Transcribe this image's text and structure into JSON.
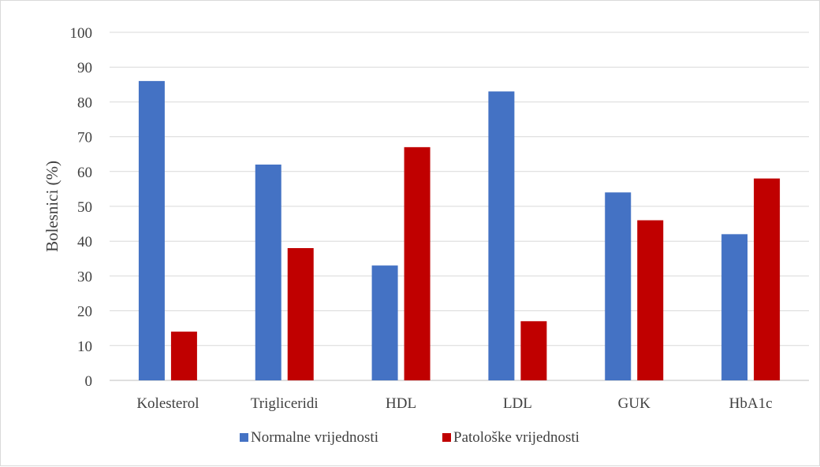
{
  "chart_data": {
    "type": "bar",
    "categories": [
      "Kolesterol",
      "Trigliceridi",
      "HDL",
      "LDL",
      "GUK",
      "HbA1c"
    ],
    "series": [
      {
        "name": "Normalne vrijednosti",
        "values": [
          86,
          62,
          33,
          83,
          54,
          42
        ],
        "color": "#4472c4"
      },
      {
        "name": "Patološke vrijednosti",
        "values": [
          14,
          38,
          67,
          17,
          46,
          58
        ],
        "color": "#c00000"
      }
    ],
    "title": "",
    "xlabel": "",
    "ylabel": "Bolesnici (%)",
    "ylim": [
      0,
      100
    ],
    "yticks": [
      "0",
      "10",
      "20",
      "30",
      "40",
      "50",
      "60",
      "70",
      "80",
      "90",
      "100"
    ],
    "grid": true,
    "legend": "bottom"
  }
}
